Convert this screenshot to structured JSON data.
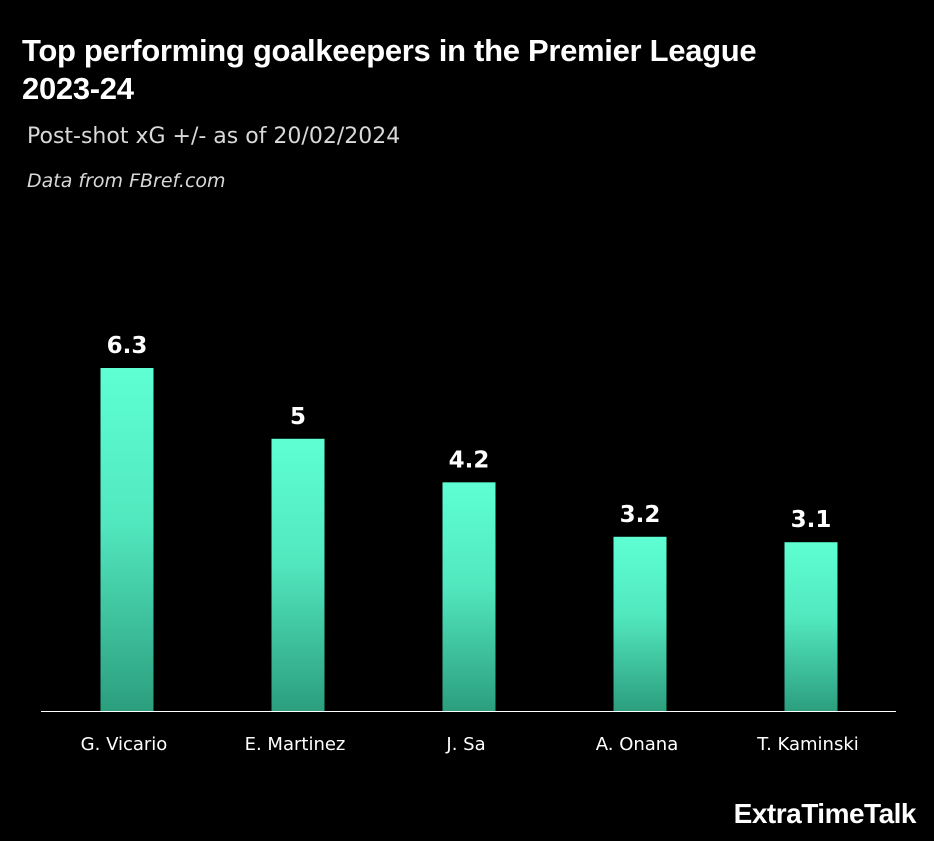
{
  "title": "Top performing goalkeepers in the Premier League 2023-24",
  "subtitle": "Post-shot xG +/- as of 20/02/2024",
  "source": "Data from FBref.com",
  "brand": "ExtraTimeTalk",
  "colors": {
    "background": "#000000",
    "bar_top": "#5effd3",
    "bar_bottom": "#2c9e7e",
    "text": "#ffffff",
    "axis": "#ffffff"
  },
  "chart_data": {
    "type": "bar",
    "categories": [
      "G. Vicario",
      "E. Martinez",
      "J. Sa",
      "A. Onana",
      "T. Kaminski"
    ],
    "values": [
      6.3,
      5,
      4.2,
      3.2,
      3.1
    ],
    "value_labels": [
      "6.3",
      "5",
      "4.2",
      "3.2",
      "3.1"
    ],
    "xlabel": "",
    "ylabel": "",
    "ylim": [
      0,
      6.3
    ],
    "grid": false,
    "legend": "none"
  }
}
